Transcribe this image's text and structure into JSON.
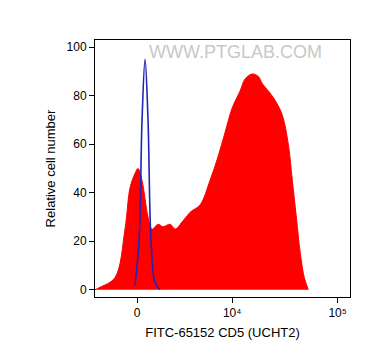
{
  "chart_data": {
    "type": "area",
    "x_label": "FITC-65152 CD5 (UCHT2)",
    "y_label": "Relative cell number",
    "annotations": [
      {
        "text": "WWW.PTGLAB.COM"
      }
    ],
    "log": "x",
    "xlim": [
      -2690,
      131000
    ],
    "xticks": [
      0,
      {
        "value": 10000,
        "label": "10⁴"
      },
      {
        "value": 100000,
        "label": "10⁵"
      }
    ],
    "ylim": [
      -3,
      103
    ],
    "yticks": [
      0,
      20,
      40,
      60,
      80,
      100
    ],
    "grid": false,
    "series": [
      {
        "type": "area",
        "color": "#ff0000",
        "x": [
          -2690,
          -2300,
          -1280,
          -680,
          -394,
          -112,
          56,
          281,
          621,
          856,
          1219,
          1536,
          2013,
          2384,
          2951,
          3685,
          4739,
          6004,
          7267,
          8530,
          10000,
          11930,
          13350,
          15590,
          17780,
          19460,
          22190,
          25820,
          30100,
          34300,
          37440,
          40850,
          44530,
          48550,
          52960
        ],
        "values": [
          0,
          1,
          5,
          25,
          42,
          48,
          50,
          45,
          30,
          25,
          27,
          26,
          27,
          25,
          28,
          32,
          35,
          45,
          55,
          65,
          75,
          82,
          87,
          89,
          88,
          85,
          82,
          78,
          72,
          60,
          45,
          30,
          15,
          5,
          0
        ]
      },
      {
        "type": "line",
        "color": "#2323b8",
        "x": [
          -112,
          112,
          281,
          451,
          621,
          796,
          1033,
          1343
        ],
        "values": [
          2,
          20,
          70,
          95,
          70,
          20,
          3,
          0
        ]
      }
    ]
  }
}
